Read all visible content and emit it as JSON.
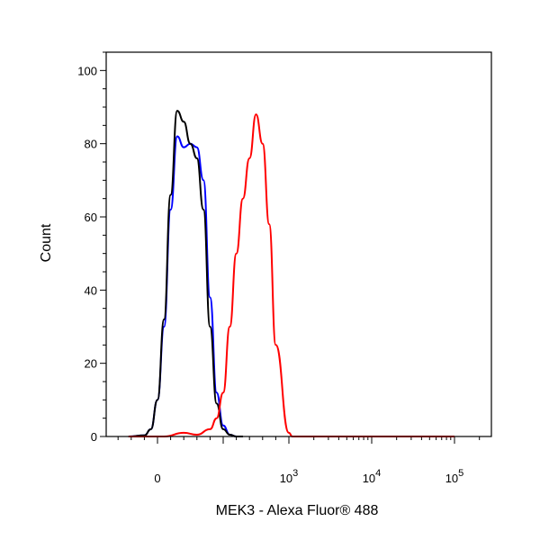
{
  "chart_data": {
    "type": "line",
    "xlabel": "MEK3 - Alexa Fluor® 488",
    "ylabel": "Count",
    "x_scale": "biexponential",
    "ylim": [
      0,
      105
    ],
    "y_ticks": [
      "0",
      "20",
      "40",
      "60",
      "80",
      "100"
    ],
    "x_ticks": [
      {
        "label": "0",
        "value": 0
      },
      {
        "label": "10",
        "sup": "3",
        "value": 1000
      },
      {
        "label": "10",
        "sup": "4",
        "value": 10000
      },
      {
        "label": "10",
        "sup": "5",
        "value": 100000
      }
    ],
    "grid": false,
    "series": [
      {
        "color": "#0000ff",
        "x": [
          -220,
          -100,
          -50,
          0,
          50,
          100,
          150,
          200,
          250,
          300,
          350,
          400,
          450,
          500,
          550,
          600,
          650
        ],
        "y": [
          0,
          0.3,
          2,
          10,
          30,
          62,
          82,
          79,
          80,
          79,
          70,
          38,
          12,
          3,
          0.5,
          0,
          0
        ]
      },
      {
        "color": "#000000",
        "x": [
          -220,
          -100,
          -50,
          0,
          50,
          100,
          150,
          200,
          250,
          300,
          350,
          400,
          450,
          500,
          550,
          600,
          650
        ],
        "y": [
          0,
          0.3,
          2,
          10,
          32,
          66,
          89,
          86,
          80,
          76,
          62,
          30,
          9,
          2,
          0.5,
          0,
          0
        ]
      },
      {
        "color": "#ff0000",
        "x": [
          -220,
          50,
          200,
          300,
          400,
          450,
          500,
          550,
          600,
          650,
          700,
          750,
          800,
          850,
          900,
          1000,
          1100,
          1200,
          100000,
          300000
        ],
        "y": [
          0,
          0,
          1,
          0.5,
          2,
          5,
          12,
          30,
          50,
          65,
          76,
          88,
          80,
          58,
          25,
          1,
          0,
          0,
          0,
          0
        ]
      }
    ]
  }
}
